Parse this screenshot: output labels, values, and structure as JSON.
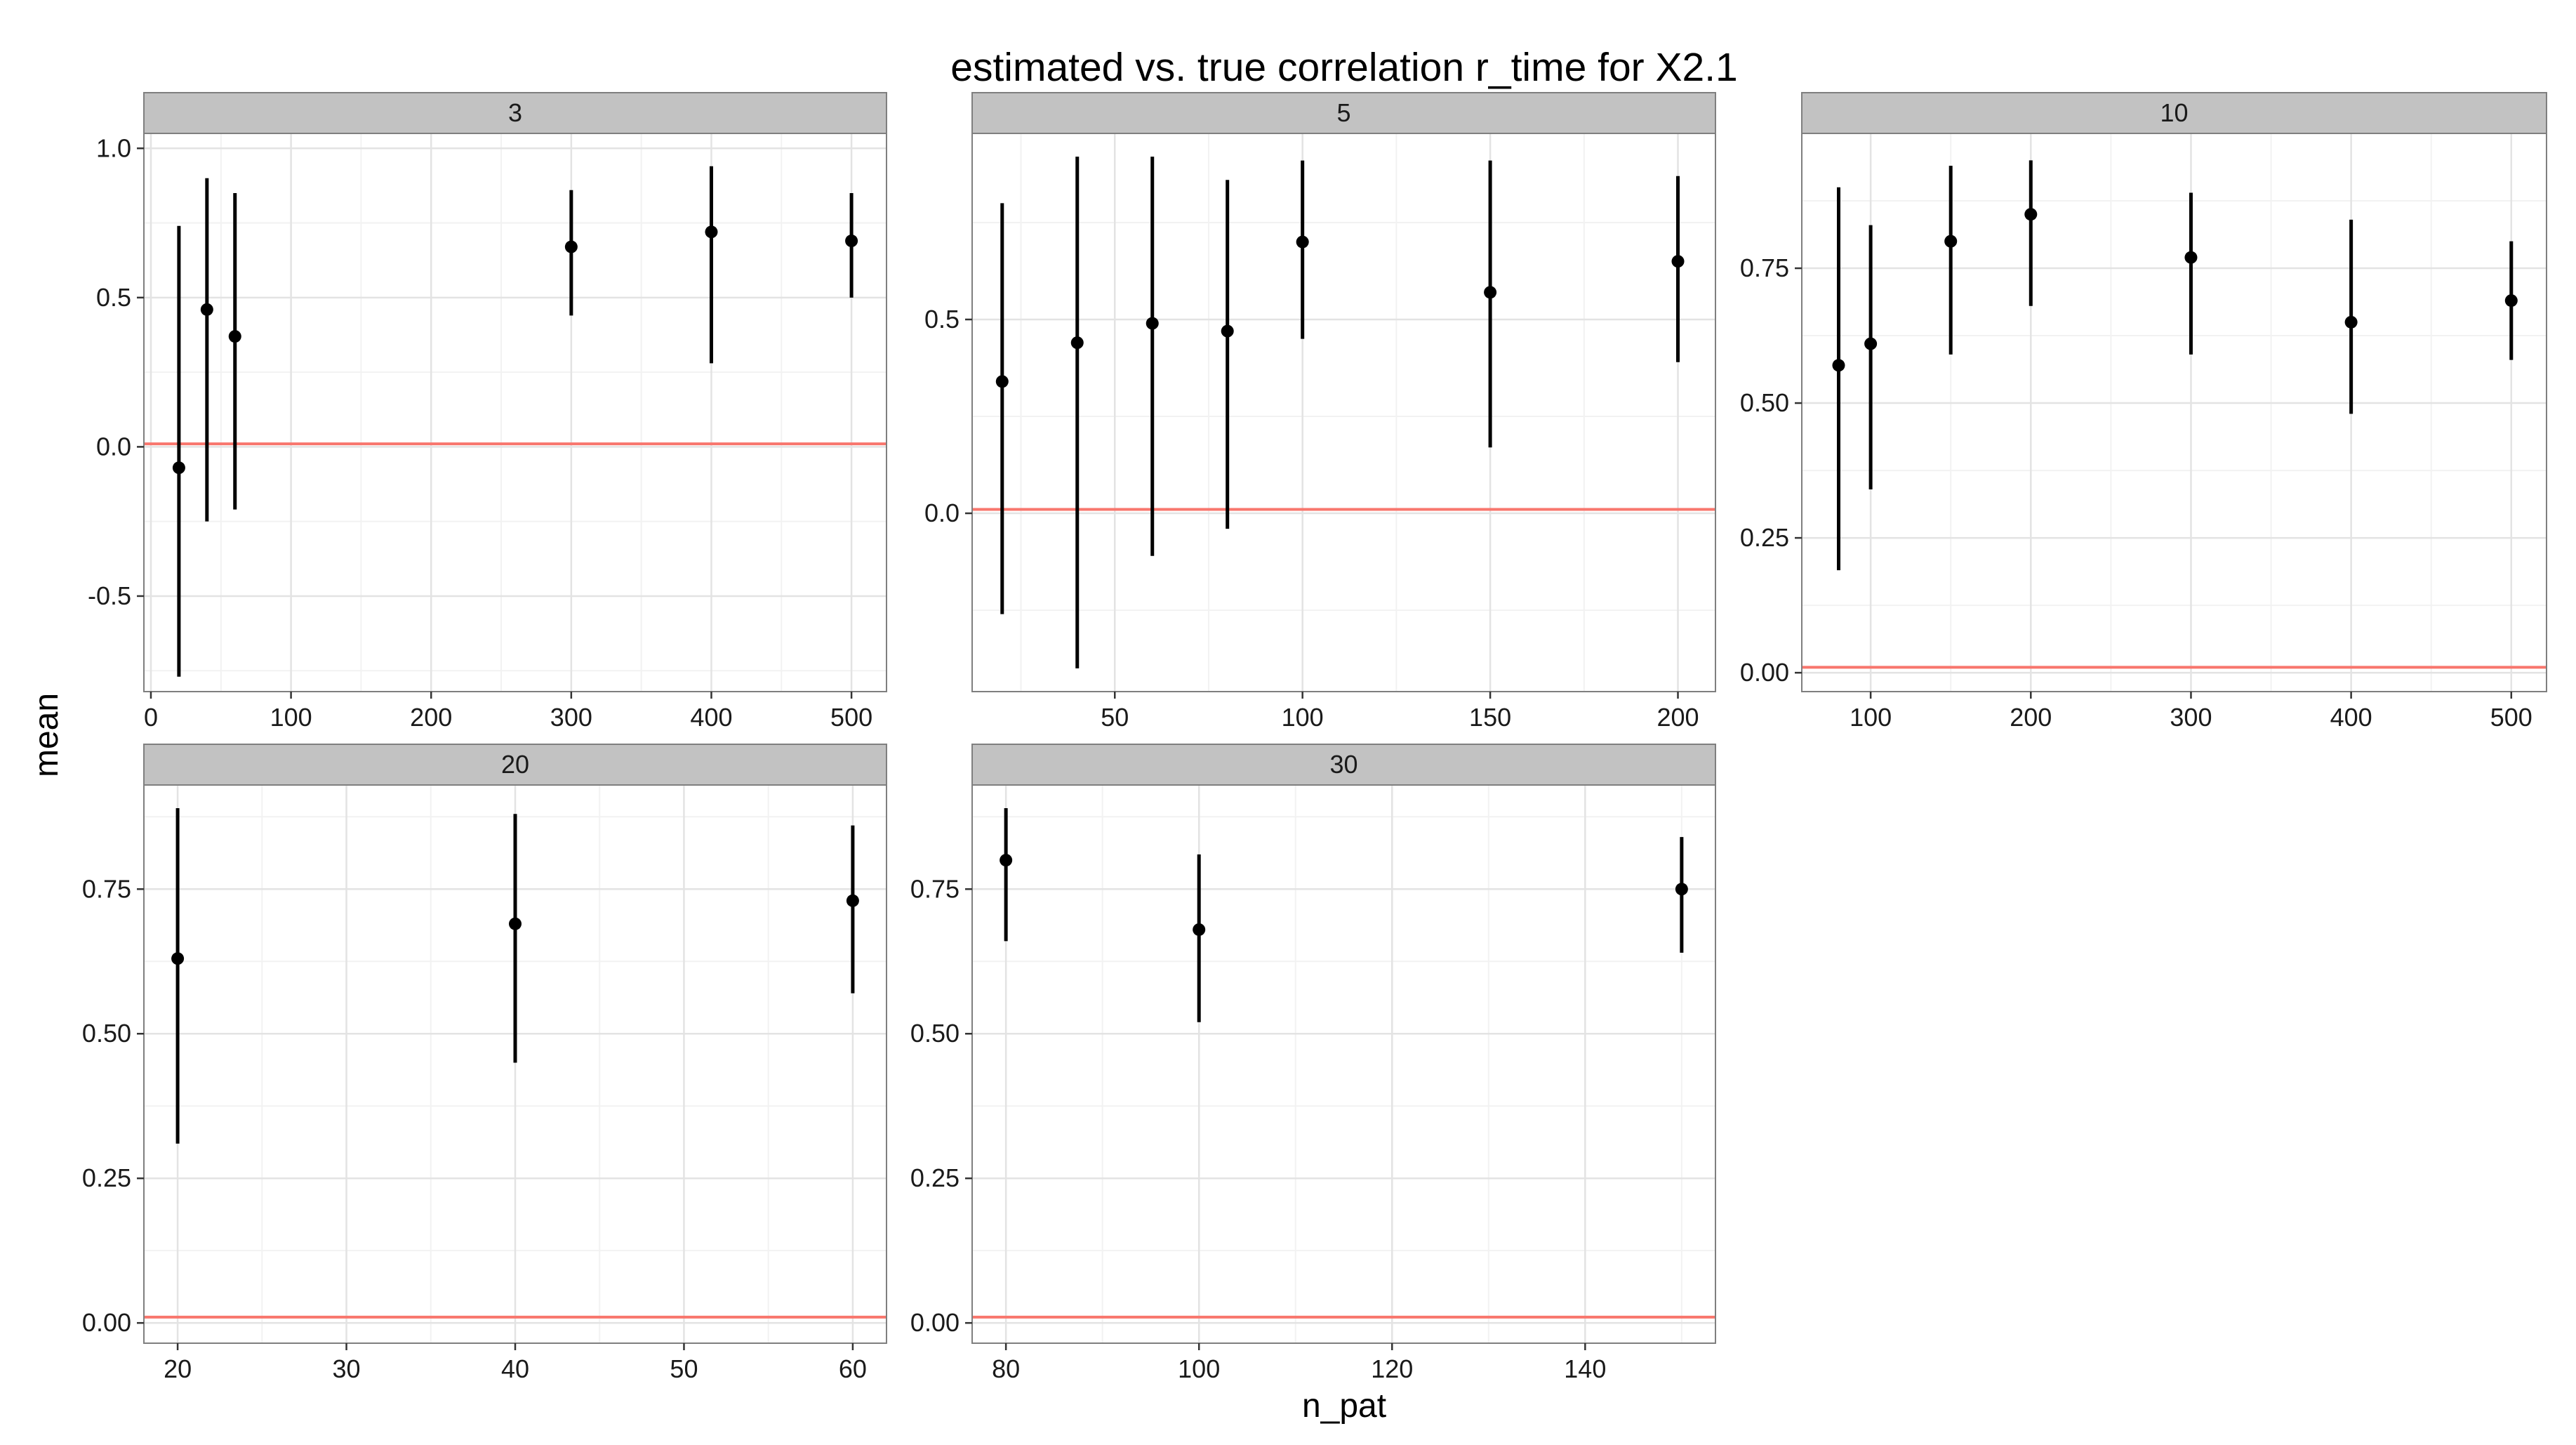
{
  "chart_data": {
    "type": "scatter",
    "title": "estimated vs. true correlation r_time for X2.1",
    "xlabel": "n_pat",
    "ylabel": "mean",
    "reference_line": {
      "y": 0.01,
      "color": "#f8766d"
    },
    "point_color": "#000000",
    "grid": true,
    "panel_background": "#ffffff",
    "strip_background": "#c2c2c2",
    "panels": [
      {
        "label": "3",
        "xlim": [
          -5,
          525
        ],
        "ylim": [
          -0.82,
          1.05
        ],
        "xticks": [
          0,
          100,
          200,
          300,
          400,
          500
        ],
        "xtick_labels": [
          "0",
          "100",
          "200",
          "300",
          "400",
          "500"
        ],
        "yticks": [
          -0.5,
          0.0,
          0.5,
          1.0
        ],
        "ytick_labels": [
          "-0.5",
          "0.0",
          "0.5",
          "1.0"
        ],
        "x": [
          20,
          40,
          60,
          300,
          400,
          500
        ],
        "mean": [
          -0.07,
          0.46,
          0.37,
          0.67,
          0.72,
          0.69
        ],
        "lower": [
          -0.77,
          -0.25,
          -0.21,
          0.44,
          0.28,
          0.5
        ],
        "upper": [
          0.74,
          0.9,
          0.85,
          0.86,
          0.94,
          0.85
        ]
      },
      {
        "label": "5",
        "xlim": [
          12,
          210
        ],
        "ylim": [
          -0.46,
          0.98
        ],
        "xticks": [
          50,
          100,
          150,
          200
        ],
        "xtick_labels": [
          "50",
          "100",
          "150",
          "200"
        ],
        "yticks": [
          0.0,
          0.5
        ],
        "ytick_labels": [
          "0.0",
          "0.5"
        ],
        "x": [
          20,
          40,
          60,
          80,
          100,
          150,
          200
        ],
        "mean": [
          0.34,
          0.44,
          0.49,
          0.47,
          0.7,
          0.57,
          0.65
        ],
        "lower": [
          -0.26,
          -0.4,
          -0.11,
          -0.04,
          0.45,
          0.17,
          0.39
        ],
        "upper": [
          0.8,
          0.92,
          0.92,
          0.86,
          0.91,
          0.91,
          0.87
        ]
      },
      {
        "label": "10",
        "xlim": [
          57,
          522
        ],
        "ylim": [
          -0.035,
          1.0
        ],
        "xticks": [
          100,
          200,
          300,
          400,
          500
        ],
        "xtick_labels": [
          "100",
          "200",
          "300",
          "400",
          "500"
        ],
        "yticks": [
          0.0,
          0.25,
          0.5,
          0.75
        ],
        "ytick_labels": [
          "0.00",
          "0.25",
          "0.50",
          "0.75"
        ],
        "x": [
          80,
          100,
          150,
          200,
          300,
          400,
          500
        ],
        "mean": [
          0.57,
          0.61,
          0.8,
          0.85,
          0.77,
          0.65,
          0.69
        ],
        "lower": [
          0.19,
          0.34,
          0.59,
          0.68,
          0.59,
          0.48,
          0.58
        ],
        "upper": [
          0.9,
          0.83,
          0.94,
          0.95,
          0.89,
          0.84,
          0.8
        ]
      },
      {
        "label": "20",
        "xlim": [
          18,
          62
        ],
        "ylim": [
          -0.035,
          0.93
        ],
        "xticks": [
          20,
          30,
          40,
          50,
          60
        ],
        "xtick_labels": [
          "20",
          "30",
          "40",
          "50",
          "60"
        ],
        "yticks": [
          0.0,
          0.25,
          0.5,
          0.75
        ],
        "ytick_labels": [
          "0.00",
          "0.25",
          "0.50",
          "0.75"
        ],
        "x": [
          20,
          40,
          60
        ],
        "mean": [
          0.63,
          0.69,
          0.73
        ],
        "lower": [
          0.31,
          0.45,
          0.57
        ],
        "upper": [
          0.89,
          0.88,
          0.86
        ]
      },
      {
        "label": "30",
        "xlim": [
          76.5,
          153.5
        ],
        "ylim": [
          -0.035,
          0.93
        ],
        "xticks": [
          80,
          100,
          120,
          140
        ],
        "xtick_labels": [
          "80",
          "100",
          "120",
          "140"
        ],
        "yticks": [
          0.0,
          0.25,
          0.5,
          0.75
        ],
        "ytick_labels": [
          "0.00",
          "0.25",
          "0.50",
          "0.75"
        ],
        "x": [
          80,
          100,
          150
        ],
        "mean": [
          0.8,
          0.68,
          0.75
        ],
        "lower": [
          0.66,
          0.52,
          0.64
        ],
        "upper": [
          0.89,
          0.81,
          0.84
        ]
      }
    ]
  }
}
